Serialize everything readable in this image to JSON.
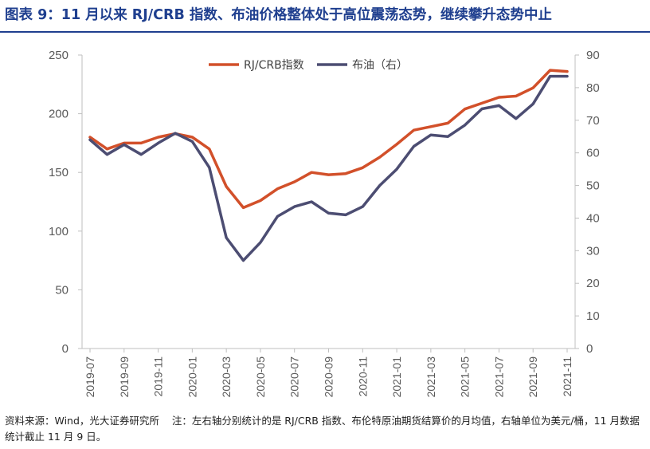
{
  "title": "图表 9：11 月以来 RJ/CRB 指数、布油价格整体处于高位震荡态势，继续攀升态势中止",
  "footer": {
    "source": "资料来源：Wind，光大证券研究所",
    "note": "注：左右轴分别统计的是 RJ/CRB 指数、布伦特原油期货结算价的月均值，右轴单位为美元/桶，11 月数据统计截止 11 月 9 日。"
  },
  "colors": {
    "primary": "#d2502a",
    "secondary": "#4c4d72",
    "axis": "#bfbfbf",
    "title": "#1f3f8f"
  },
  "chart_data": {
    "type": "line",
    "title": "",
    "xlabel": "",
    "ylabel_left": "",
    "ylabel_right": "",
    "x": [
      "2019-07",
      "2019-08",
      "2019-09",
      "2019-10",
      "2019-11",
      "2019-12",
      "2020-01",
      "2020-02",
      "2020-03",
      "2020-04",
      "2020-05",
      "2020-06",
      "2020-07",
      "2020-08",
      "2020-09",
      "2020-10",
      "2020-11",
      "2020-12",
      "2021-01",
      "2021-02",
      "2021-03",
      "2021-04",
      "2021-05",
      "2021-06",
      "2021-07",
      "2021-08",
      "2021-09",
      "2021-10",
      "2021-11"
    ],
    "x_tick_labels": [
      "2019-07",
      "2019-09",
      "2019-11",
      "2020-01",
      "2020-03",
      "2020-05",
      "2020-07",
      "2020-09",
      "2020-11",
      "2021-01",
      "2021-03",
      "2021-05",
      "2021-07",
      "2021-09",
      "2021-11"
    ],
    "ylim_left": [
      0,
      250
    ],
    "yticks_left": [
      0,
      50,
      100,
      150,
      200,
      250
    ],
    "ylim_right": [
      0,
      90
    ],
    "yticks_right": [
      0,
      10,
      20,
      30,
      40,
      50,
      60,
      70,
      80,
      90
    ],
    "legend_position": "top-center",
    "series": [
      {
        "name": "RJ/CRB指数",
        "axis": "left",
        "color": "#d2502a",
        "values": [
          180,
          170,
          175,
          175,
          180,
          183,
          180,
          170,
          138,
          120,
          126,
          136,
          142,
          150,
          148,
          149,
          154,
          163,
          174,
          186,
          189,
          192,
          204,
          209,
          214,
          215,
          222,
          237,
          236
        ]
      },
      {
        "name": "布油（右）",
        "axis": "right",
        "color": "#4c4d72",
        "values": [
          64,
          59.5,
          62.5,
          59.5,
          63,
          66,
          63.5,
          55.5,
          34,
          27,
          32.5,
          40.5,
          43.5,
          45,
          41.5,
          41,
          43.5,
          50,
          55,
          62,
          65.5,
          65,
          68.5,
          73.5,
          74.5,
          70.5,
          75,
          83.5,
          83.5
        ]
      }
    ]
  }
}
